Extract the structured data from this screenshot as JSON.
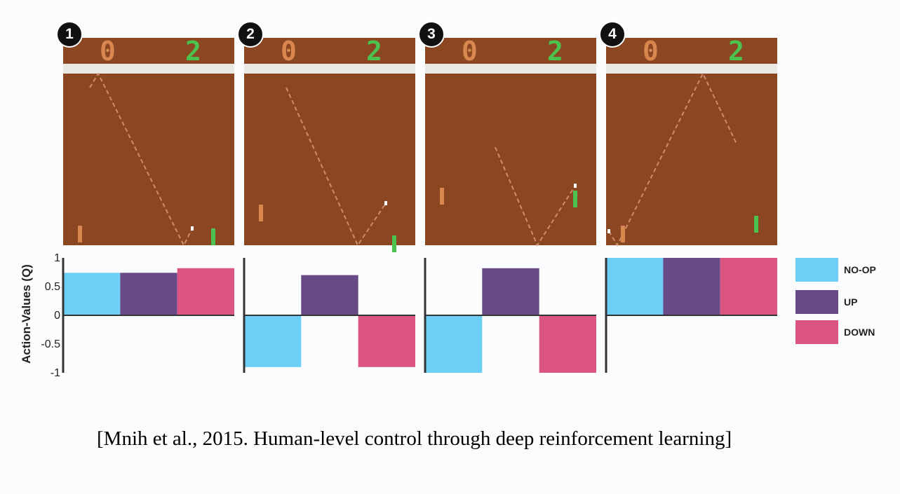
{
  "figure": {
    "panels": [
      {
        "badge": "1",
        "score_left": "0",
        "score_right": "2"
      },
      {
        "badge": "2",
        "score_left": "0",
        "score_right": "2"
      },
      {
        "badge": "3",
        "score_left": "0",
        "score_right": "2"
      },
      {
        "badge": "4",
        "score_left": "0",
        "score_right": "2"
      }
    ],
    "colors": {
      "field": "#8b4722",
      "stripe": "#e9e9e6",
      "left_paddle": "#d9874f",
      "right_paddle": "#4cc24f",
      "axis": "#333333"
    }
  },
  "chart_data": [
    {
      "type": "bar",
      "categories": [
        "NO-OP",
        "UP",
        "DOWN"
      ],
      "values": [
        0.74,
        0.74,
        0.82
      ],
      "ylabel": "Action-Values (Q)",
      "ylim": [
        -1,
        1
      ],
      "yticks": [
        "1",
        "0.5",
        "0",
        "-0.5",
        "-1"
      ]
    },
    {
      "type": "bar",
      "categories": [
        "NO-OP",
        "UP",
        "DOWN"
      ],
      "values": [
        -0.9,
        0.7,
        -0.9
      ],
      "ylim": [
        -1,
        1
      ]
    },
    {
      "type": "bar",
      "categories": [
        "NO-OP",
        "UP",
        "DOWN"
      ],
      "values": [
        -1.0,
        0.82,
        -1.0
      ],
      "ylim": [
        -1,
        1
      ]
    },
    {
      "type": "bar",
      "categories": [
        "NO-OP",
        "UP",
        "DOWN"
      ],
      "values": [
        1.0,
        1.0,
        1.0
      ],
      "ylim": [
        -1,
        1
      ]
    }
  ],
  "legend": [
    {
      "label": "NO-OP",
      "color": "#6dcff6"
    },
    {
      "label": "UP",
      "color": "#674a86"
    },
    {
      "label": "DOWN",
      "color": "#dc5582"
    }
  ],
  "citation": "[Mnih et al., 2015. Human-level control through deep reinforcement learning]"
}
